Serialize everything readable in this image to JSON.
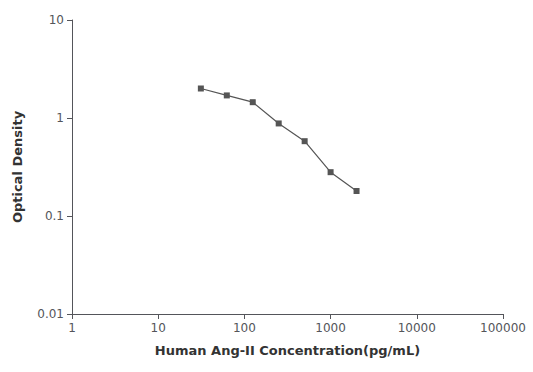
{
  "chart_data": {
    "type": "line",
    "x": [
      31.25,
      62.5,
      125,
      250,
      500,
      1000,
      2000
    ],
    "series": [
      {
        "values": [
          2.0,
          1.7,
          1.45,
          0.88,
          0.58,
          0.28,
          0.18
        ],
        "color": "#555555",
        "marker": "square",
        "line_style": "solid"
      }
    ],
    "xlabel": "Human Ang-II Concentration(pg/mL)",
    "ylabel": "Optical Density",
    "xlim": [
      1,
      100000
    ],
    "ylim": [
      0.01,
      10
    ],
    "xticks": [
      1,
      10,
      100,
      1000,
      10000,
      100000
    ],
    "yticks": [
      0.01,
      0.1,
      1,
      10
    ],
    "log": true,
    "grid": false
  }
}
